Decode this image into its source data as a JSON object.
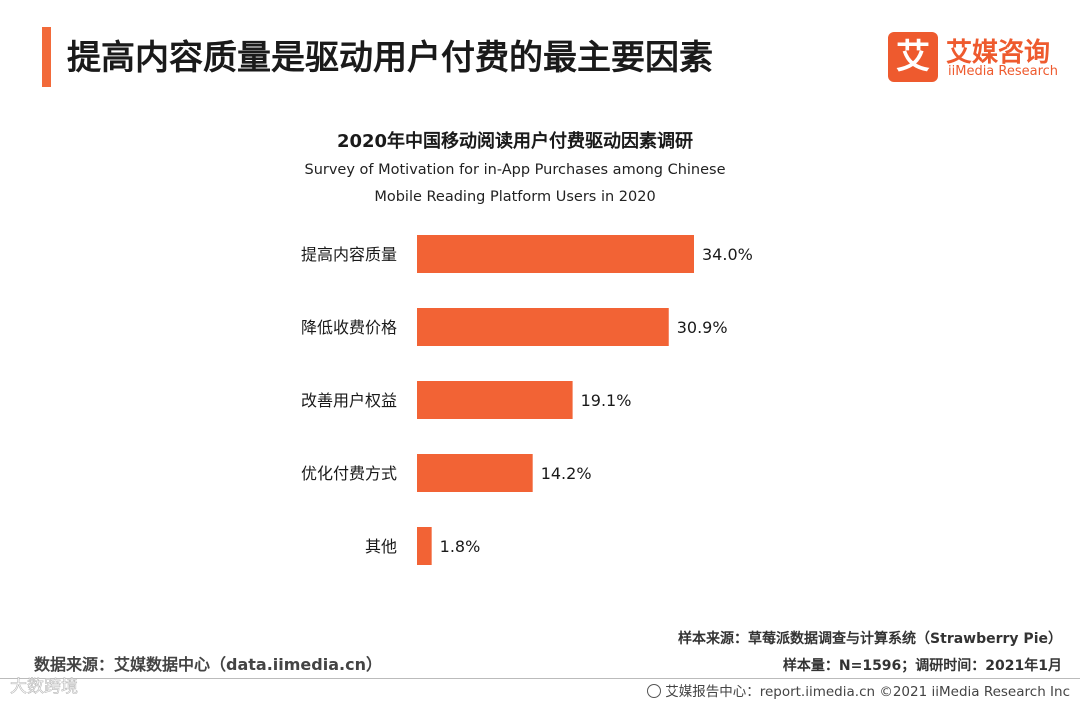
{
  "header": {
    "title": "提高内容质量是驱动用户付费的最主要因素"
  },
  "logo": {
    "mark": "艾",
    "name_cn": "艾媒咨询",
    "name_en": "iiMedia Research"
  },
  "colors": {
    "accent": "#f26a3a",
    "bar": "#f26335"
  },
  "chart_data": {
    "type": "bar",
    "orientation": "horizontal",
    "title": "2020年中国移动阅读用户付费驱动因素调研",
    "subtitle_lines": [
      "Survey of Motivation for in-App Purchases among  Chinese",
      "Mobile Reading Platform Users in 2020"
    ],
    "categories": [
      "提高内容质量",
      "降低收费价格",
      "改善用户权益",
      "优化付费方式",
      "其他"
    ],
    "values": [
      34.0,
      30.9,
      19.1,
      14.2,
      1.8
    ],
    "value_labels": [
      "34.0%",
      "30.9%",
      "19.1%",
      "14.2%",
      "1.8%"
    ],
    "unit": "%",
    "grid": false,
    "xlabel": "",
    "ylabel": ""
  },
  "footer": {
    "data_source": "数据来源：艾媒数据中心（data.iimedia.cn）",
    "sample_source": "样本来源：草莓派数据调查与计算系统（Strawberry Pie）",
    "sample_info": "样本量：N=1596；调研时间：2021年1月",
    "report_center": "艾媒报告中心：report.iimedia.cn   ©2021  iiMedia Research  Inc",
    "watermark": "大数跨境"
  }
}
